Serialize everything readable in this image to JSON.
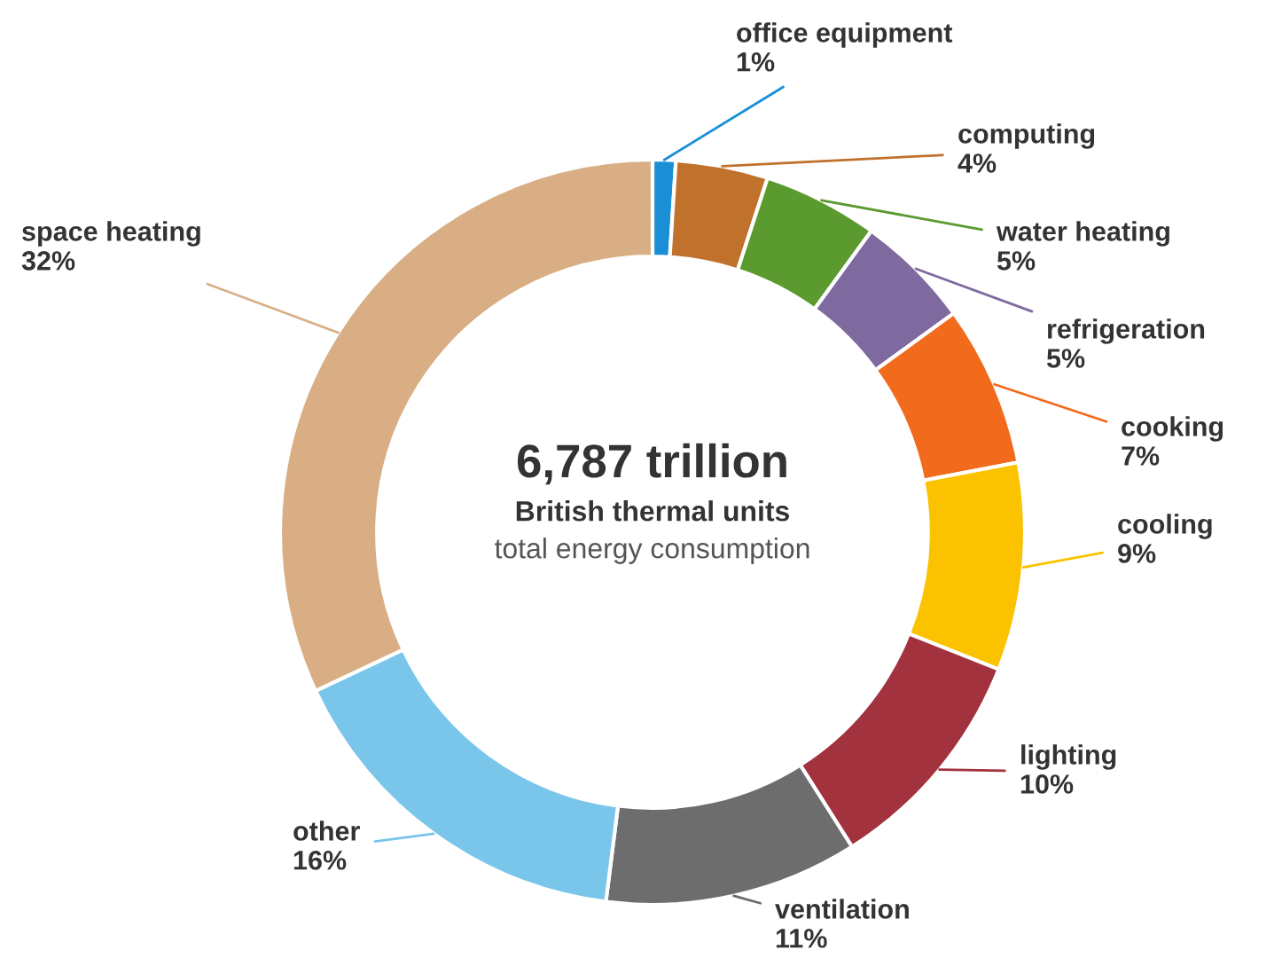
{
  "chart_data": {
    "type": "donut",
    "categories": [
      "office equipment",
      "computing",
      "water heating",
      "refrigeration",
      "cooking",
      "cooling",
      "lighting",
      "ventilation",
      "other",
      "space heating"
    ],
    "values": [
      1,
      4,
      5,
      5,
      7,
      9,
      10,
      11,
      16,
      32
    ],
    "value_labels": [
      "1%",
      "4%",
      "5%",
      "5%",
      "7%",
      "9%",
      "10%",
      "11%",
      "16%",
      "32%"
    ],
    "colors": [
      "#1a8fd6",
      "#c0712b",
      "#5a9a2e",
      "#7e6a9e",
      "#f26a1b",
      "#fbc200",
      "#a2323e",
      "#6d6d6d",
      "#79c6ea",
      "#d9ae84"
    ],
    "annotations": [
      "6,787 trillion",
      "British thermal units",
      "total energy consumption"
    ]
  }
}
